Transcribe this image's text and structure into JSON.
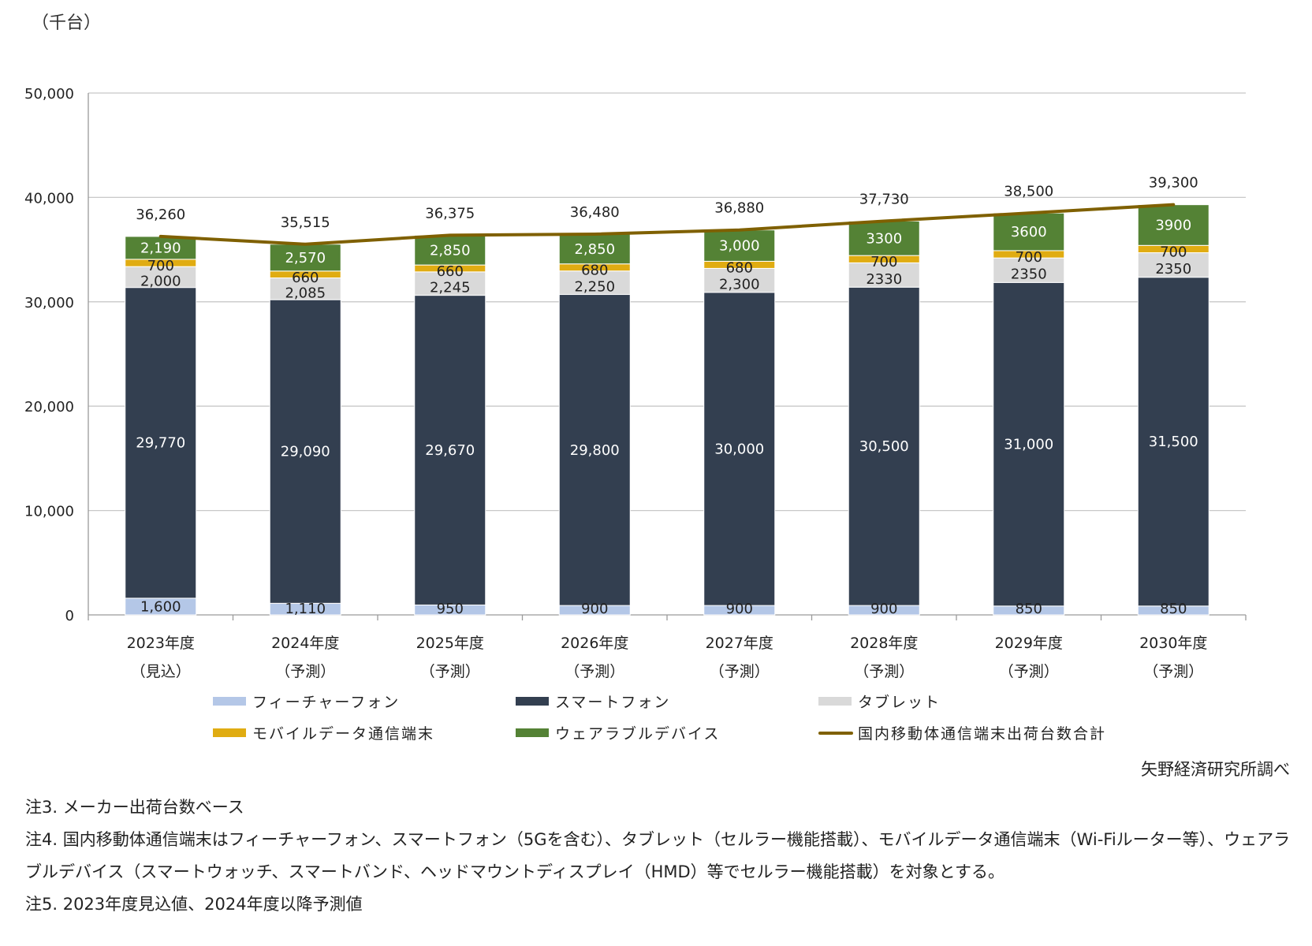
{
  "chart_data": {
    "type": "bar",
    "stacked": true,
    "unit_label": "（千台）",
    "ylim": [
      0,
      50000
    ],
    "yticks": [
      "0",
      "10,000",
      "20,000",
      "30,000",
      "40,000",
      "50,000"
    ],
    "ytick_values": [
      0,
      10000,
      20000,
      30000,
      40000,
      50000
    ],
    "grid": true,
    "categories": [
      [
        "2023年度",
        "（見込）"
      ],
      [
        "2024年度",
        "（予測）"
      ],
      [
        "2025年度",
        "（予測）"
      ],
      [
        "2026年度",
        "（予測）"
      ],
      [
        "2027年度",
        "（予測）"
      ],
      [
        "2028年度",
        "（予測）"
      ],
      [
        "2029年度",
        "（予測）"
      ],
      [
        "2030年度",
        "（予測）"
      ]
    ],
    "series": [
      {
        "name": "フィーチャーフォン",
        "color": "#b4c7e7",
        "values": [
          1600,
          1110,
          950,
          900,
          900,
          900,
          850,
          850
        ],
        "labels": [
          "1,600",
          "1,110",
          "950",
          "900",
          "900",
          "900",
          "850",
          "850"
        ]
      },
      {
        "name": "スマートフォン",
        "color": "#333f50",
        "values": [
          29770,
          29090,
          29670,
          29800,
          30000,
          30500,
          31000,
          31500
        ],
        "labels": [
          "29,770",
          "29,090",
          "29,670",
          "29,800",
          "30,000",
          "30,500",
          "31,000",
          "31,500"
        ]
      },
      {
        "name": "タブレット",
        "color": "#d9d9d9",
        "values": [
          2000,
          2085,
          2245,
          2250,
          2300,
          2330,
          2350,
          2350
        ],
        "labels": [
          "2,000",
          "2,085",
          "2,245",
          "2,250",
          "2,300",
          "2330",
          "2350",
          "2350"
        ]
      },
      {
        "name": "モバイルデータ通信端末",
        "color": "#e0ac12",
        "values": [
          700,
          660,
          660,
          680,
          680,
          700,
          700,
          700
        ],
        "labels": [
          "700",
          "660",
          "660",
          "680",
          "680",
          "700",
          "700",
          "700"
        ]
      },
      {
        "name": "ウェアラブルデバイス",
        "color": "#548235",
        "values": [
          2190,
          2570,
          2850,
          2850,
          3000,
          3300,
          3600,
          3900
        ],
        "labels": [
          "2,190",
          "2,570",
          "2,850",
          "2,850",
          "3,000",
          "3300",
          "3600",
          "3900"
        ]
      }
    ],
    "total": {
      "name": "国内移動体通信端末出荷台数合計",
      "color": "#7f6000",
      "values": [
        36260,
        35515,
        36375,
        36480,
        36880,
        37730,
        38500,
        39300
      ],
      "labels": [
        "36,260",
        "35,515",
        "36,375",
        "36,480",
        "36,880",
        "37,730",
        "38,500",
        "39,300"
      ]
    },
    "legend": "bottom"
  },
  "source": "矢野経済研究所調べ",
  "notes": [
    "注3. メーカー出荷台数ベース",
    "注4. 国内移動体通信端末はフィーチャーフォン、スマートフォン（5Gを含む）、タブレット（セルラー機能搭載）、モバイルデータ通信端末（Wi-Fiルーター等）、ウェアラブルデバイス（スマートウォッチ、スマートバンド、ヘッドマウントディスプレイ（HMD）等でセルラー機能搭載）を対象とする。",
    "注5. 2023年度見込値、2024年度以降予測値"
  ]
}
